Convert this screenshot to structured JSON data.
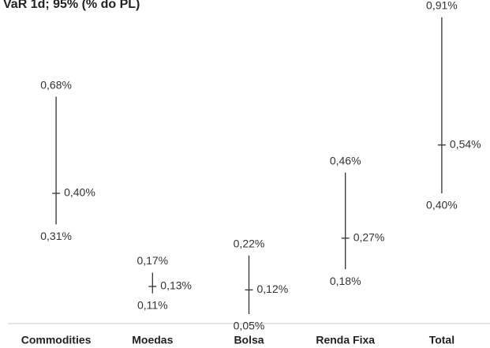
{
  "chart_data": {
    "type": "range",
    "title": "VaR 1d; 95% (% do PL)",
    "categories": [
      "Commodities",
      "Moedas",
      "Bolsa",
      "Renda Fixa",
      "Total"
    ],
    "high": {
      "values": [
        0.68,
        0.17,
        0.22,
        0.46,
        0.91
      ],
      "value_labels": [
        "0,68%",
        "0,17%",
        "0,22%",
        "0,46%",
        "0,91%"
      ]
    },
    "mid": {
      "values": [
        0.4,
        0.13,
        0.12,
        0.27,
        0.54
      ],
      "value_labels": [
        "0,40%",
        "0,13%",
        "0,12%",
        "0,27%",
        "0,54%"
      ]
    },
    "low": {
      "values": [
        0.31,
        0.11,
        0.05,
        0.18,
        0.4
      ],
      "value_labels": [
        "0,31%",
        "0,11%",
        "0,05%",
        "0,18%",
        "0,40%"
      ]
    },
    "color": "#333333"
  }
}
